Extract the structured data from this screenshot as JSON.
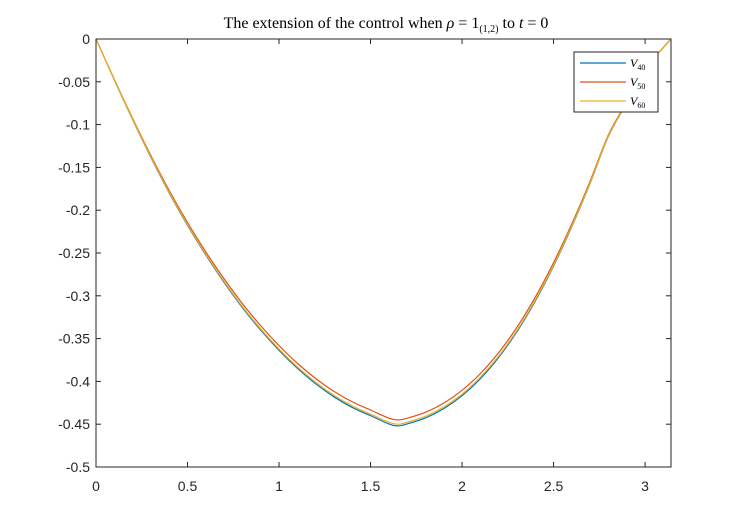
{
  "chart_data": {
    "type": "line",
    "title": {
      "prefix": "The extension of the control when ",
      "rho": "ρ",
      "eq1": " = 1",
      "sub": "(1,2)",
      "mid": " to ",
      "t": "t",
      "eq2": " = 0"
    },
    "xlabel": "",
    "ylabel": "",
    "xlim": [
      0,
      3.14159
    ],
    "ylim": [
      -0.5,
      0
    ],
    "xticks": [
      0,
      0.5,
      1,
      1.5,
      2,
      2.5,
      3
    ],
    "xtick_labels": [
      "0",
      "0.5",
      "1",
      "1.5",
      "2",
      "2.5",
      "3"
    ],
    "yticks": [
      0,
      -0.05,
      -0.1,
      -0.15,
      -0.2,
      -0.25,
      -0.3,
      -0.35,
      -0.4,
      -0.45,
      -0.5
    ],
    "ytick_labels": [
      "0",
      "-0.05",
      "-0.1",
      "-0.15",
      "-0.2",
      "-0.25",
      "-0.3",
      "-0.35",
      "-0.4",
      "-0.45",
      "-0.5"
    ],
    "grid": false,
    "legend_position": "top-right",
    "series": [
      {
        "name": "V",
        "name_sub": "40",
        "color": "#0072BD",
        "x": [
          0,
          0.1,
          0.2,
          0.3,
          0.4,
          0.5,
          0.6,
          0.7,
          0.8,
          0.9,
          1.0,
          1.1,
          1.2,
          1.3,
          1.4,
          1.5,
          1.6,
          1.65,
          1.7,
          1.8,
          1.9,
          2.0,
          2.1,
          2.2,
          2.3,
          2.4,
          2.5,
          2.6,
          2.7,
          2.8,
          2.9,
          3.0,
          3.1,
          3.1416
        ],
        "y": [
          0,
          -0.0477,
          -0.0941,
          -0.1384,
          -0.1798,
          -0.2177,
          -0.2523,
          -0.2844,
          -0.3138,
          -0.3401,
          -0.3637,
          -0.3846,
          -0.4027,
          -0.418,
          -0.4304,
          -0.44,
          -0.4497,
          -0.452,
          -0.4497,
          -0.4427,
          -0.4318,
          -0.4167,
          -0.3969,
          -0.372,
          -0.3418,
          -0.3062,
          -0.2652,
          -0.2191,
          -0.1683,
          -0.1135,
          -0.0746,
          -0.0352,
          -0.01,
          0
        ]
      },
      {
        "name": "V",
        "name_sub": "50",
        "color": "#D95319",
        "x": [
          0,
          0.1,
          0.2,
          0.3,
          0.4,
          0.5,
          0.6,
          0.7,
          0.8,
          0.9,
          1.0,
          1.1,
          1.2,
          1.3,
          1.4,
          1.5,
          1.6,
          1.65,
          1.7,
          1.8,
          1.9,
          2.0,
          2.1,
          2.2,
          2.3,
          2.4,
          2.5,
          2.6,
          2.7,
          2.8,
          2.9,
          3.0,
          3.1,
          3.1416
        ],
        "y": [
          0,
          -0.047,
          -0.0927,
          -0.1363,
          -0.1771,
          -0.2145,
          -0.2487,
          -0.2802,
          -0.3091,
          -0.335,
          -0.3582,
          -0.3788,
          -0.3966,
          -0.4117,
          -0.4239,
          -0.4334,
          -0.443,
          -0.445,
          -0.443,
          -0.4361,
          -0.4254,
          -0.4104,
          -0.3909,
          -0.3664,
          -0.3367,
          -0.3016,
          -0.2612,
          -0.2158,
          -0.1658,
          -0.1118,
          -0.0735,
          -0.0347,
          -0.0098,
          0
        ]
      },
      {
        "name": "V",
        "name_sub": "60",
        "color": "#EDB120",
        "x": [
          0,
          0.1,
          0.2,
          0.3,
          0.4,
          0.5,
          0.6,
          0.7,
          0.8,
          0.9,
          1.0,
          1.1,
          1.2,
          1.3,
          1.4,
          1.5,
          1.6,
          1.65,
          1.7,
          1.8,
          1.9,
          2.0,
          2.1,
          2.2,
          2.3,
          2.4,
          2.5,
          2.6,
          2.7,
          2.8,
          2.9,
          3.0,
          3.1,
          3.1416
        ],
        "y": [
          0,
          -0.0475,
          -0.0937,
          -0.1378,
          -0.1791,
          -0.2168,
          -0.2513,
          -0.2832,
          -0.3125,
          -0.3387,
          -0.3622,
          -0.383,
          -0.401,
          -0.4162,
          -0.4286,
          -0.4382,
          -0.4477,
          -0.45,
          -0.4477,
          -0.4408,
          -0.4299,
          -0.4149,
          -0.3951,
          -0.3704,
          -0.3403,
          -0.3049,
          -0.2641,
          -0.2182,
          -0.1676,
          -0.113,
          -0.0743,
          -0.035,
          -0.0099,
          0
        ]
      }
    ]
  }
}
